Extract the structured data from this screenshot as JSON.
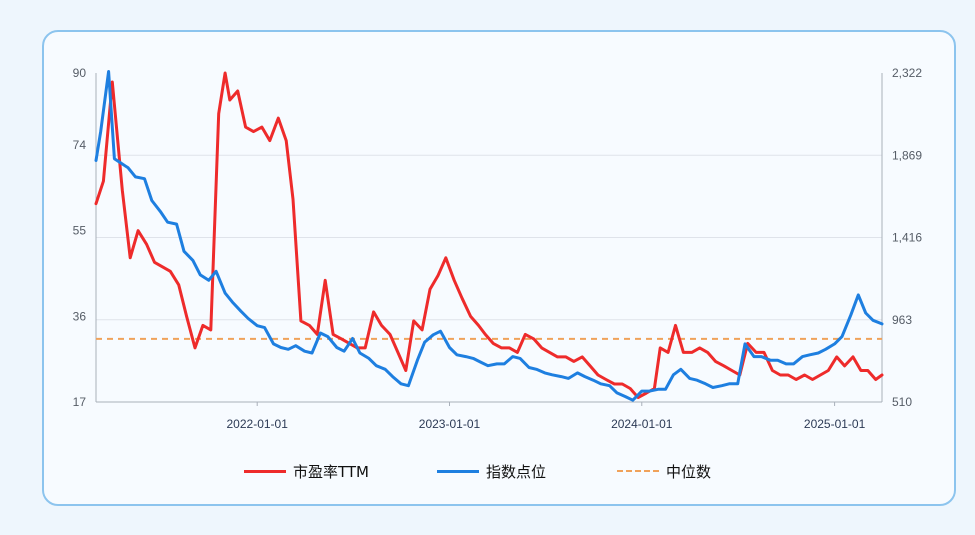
{
  "chart_data": {
    "type": "line",
    "x_ticks": [
      "2022-01-01",
      "2023-01-01",
      "2024-01-01",
      "2025-01-01"
    ],
    "y_left_ticks": [
      "17",
      "36",
      "55",
      "74",
      "90"
    ],
    "y_right_ticks": [
      "510",
      "963",
      "1,416",
      "1,869",
      "2,322"
    ],
    "y_left_range": [
      17,
      90
    ],
    "y_right_range": [
      510,
      2322
    ],
    "x_range": [
      "2021-03-01",
      "2025-04-01"
    ],
    "median_pe": 31,
    "grid": "horizontal",
    "legend_placement": "bottom",
    "series": [
      {
        "name": "市盈率TTM",
        "axis": "left",
        "color": "#ee2b2b",
        "x": [
          "2021-03-01",
          "2021-03-15",
          "2021-04-01",
          "2021-04-20",
          "2021-05-05",
          "2021-05-20",
          "2021-06-05",
          "2021-06-20",
          "2021-07-05",
          "2021-07-20",
          "2021-08-05",
          "2021-08-20",
          "2021-09-05",
          "2021-09-20",
          "2021-10-05",
          "2021-10-20",
          "2021-11-01",
          "2021-11-10",
          "2021-11-25",
          "2021-12-10",
          "2021-12-25",
          "2022-01-10",
          "2022-01-25",
          "2022-02-10",
          "2022-02-25",
          "2022-03-10",
          "2022-03-25",
          "2022-04-10",
          "2022-04-25",
          "2022-05-10",
          "2022-05-25",
          "2022-06-10",
          "2022-06-25",
          "2022-07-10",
          "2022-07-25",
          "2022-08-10",
          "2022-08-25",
          "2022-09-10",
          "2022-09-25",
          "2022-10-10",
          "2022-10-25",
          "2022-11-10",
          "2022-11-25",
          "2022-12-10",
          "2022-12-25",
          "2023-01-10",
          "2023-01-25",
          "2023-02-10",
          "2023-02-25",
          "2023-03-10",
          "2023-03-25",
          "2023-04-10",
          "2023-04-25",
          "2023-05-10",
          "2023-05-25",
          "2023-06-10",
          "2023-06-25",
          "2023-07-10",
          "2023-07-25",
          "2023-08-10",
          "2023-08-25",
          "2023-09-10",
          "2023-09-25",
          "2023-10-10",
          "2023-10-25",
          "2023-11-10",
          "2023-11-25",
          "2023-12-10",
          "2023-12-25",
          "2024-01-10",
          "2024-01-25",
          "2024-02-05",
          "2024-02-20",
          "2024-03-05",
          "2024-03-20",
          "2024-04-05",
          "2024-04-20",
          "2024-05-05",
          "2024-05-20",
          "2024-06-05",
          "2024-06-20",
          "2024-07-05",
          "2024-07-20",
          "2024-08-05",
          "2024-08-20",
          "2024-09-05",
          "2024-09-20",
          "2024-10-05",
          "2024-10-20",
          "2024-11-05",
          "2024-11-20",
          "2024-12-05",
          "2024-12-20",
          "2025-01-05",
          "2025-01-20",
          "2025-02-05",
          "2025-02-20",
          "2025-03-05",
          "2025-03-20",
          "2025-04-01"
        ],
        "values": [
          61,
          66,
          88,
          64,
          49,
          55,
          52,
          48,
          47,
          46,
          43,
          36,
          29,
          34,
          33,
          81,
          90,
          84,
          86,
          78,
          77,
          78,
          75,
          80,
          75,
          62,
          35,
          34,
          32,
          44,
          32,
          31,
          30,
          29,
          29,
          37,
          34,
          32,
          28,
          24,
          35,
          33,
          42,
          45,
          49,
          44,
          40,
          36,
          34,
          32,
          30,
          29,
          29,
          28,
          32,
          31,
          29,
          28,
          27,
          27,
          26,
          27,
          25,
          23,
          22,
          21,
          21,
          20,
          18,
          19,
          20,
          29,
          28,
          34,
          28,
          28,
          29,
          28,
          26,
          25,
          24,
          23,
          30,
          28,
          28,
          24,
          23,
          23,
          22,
          23,
          22,
          23,
          24,
          27,
          25,
          27,
          24,
          24,
          22,
          23
        ]
      },
      {
        "name": "指数点位",
        "axis": "right",
        "color": "#1e7fe0",
        "x": [
          "2021-03-01",
          "2021-03-10",
          "2021-03-25",
          "2021-04-05",
          "2021-04-15",
          "2021-05-01",
          "2021-05-15",
          "2021-06-01",
          "2021-06-15",
          "2021-07-01",
          "2021-07-15",
          "2021-08-01",
          "2021-08-15",
          "2021-09-01",
          "2021-09-15",
          "2021-10-01",
          "2021-10-15",
          "2021-11-01",
          "2021-11-15",
          "2021-12-01",
          "2021-12-15",
          "2022-01-01",
          "2022-01-15",
          "2022-02-01",
          "2022-02-15",
          "2022-03-01",
          "2022-03-15",
          "2022-04-01",
          "2022-04-15",
          "2022-05-01",
          "2022-05-15",
          "2022-06-01",
          "2022-06-15",
          "2022-07-01",
          "2022-07-15",
          "2022-08-01",
          "2022-08-15",
          "2022-09-01",
          "2022-09-15",
          "2022-10-01",
          "2022-10-15",
          "2022-11-01",
          "2022-11-15",
          "2022-12-01",
          "2022-12-15",
          "2023-01-01",
          "2023-01-15",
          "2023-02-01",
          "2023-02-15",
          "2023-03-01",
          "2023-03-15",
          "2023-04-01",
          "2023-04-15",
          "2023-05-01",
          "2023-05-15",
          "2023-06-01",
          "2023-06-15",
          "2023-07-01",
          "2023-07-15",
          "2023-08-01",
          "2023-08-15",
          "2023-09-01",
          "2023-09-15",
          "2023-10-01",
          "2023-10-15",
          "2023-11-01",
          "2023-11-15",
          "2023-12-01",
          "2023-12-15",
          "2024-01-01",
          "2024-01-15",
          "2024-02-01",
          "2024-02-15",
          "2024-03-01",
          "2024-03-15",
          "2024-04-01",
          "2024-04-15",
          "2024-05-01",
          "2024-05-15",
          "2024-06-01",
          "2024-06-15",
          "2024-07-01",
          "2024-07-15",
          "2024-08-01",
          "2024-08-15",
          "2024-09-01",
          "2024-09-15",
          "2024-10-01",
          "2024-10-15",
          "2024-11-01",
          "2024-11-15",
          "2024-12-01",
          "2024-12-15",
          "2025-01-01",
          "2025-01-15",
          "2025-02-01",
          "2025-02-15",
          "2025-03-01",
          "2025-03-15",
          "2025-04-01"
        ],
        "values": [
          1840,
          2000,
          2330,
          1850,
          1830,
          1800,
          1750,
          1740,
          1620,
          1560,
          1500,
          1490,
          1340,
          1290,
          1210,
          1180,
          1230,
          1110,
          1060,
          1010,
          970,
          930,
          920,
          830,
          810,
          800,
          820,
          790,
          780,
          890,
          870,
          810,
          790,
          860,
          780,
          750,
          710,
          690,
          650,
          610,
          600,
          740,
          840,
          880,
          900,
          810,
          770,
          760,
          750,
          730,
          710,
          720,
          720,
          760,
          750,
          700,
          690,
          670,
          660,
          650,
          640,
          670,
          650,
          630,
          610,
          600,
          560,
          540,
          520,
          570,
          570,
          580,
          580,
          660,
          690,
          640,
          630,
          610,
          590,
          600,
          610,
          610,
          830,
          760,
          760,
          740,
          740,
          720,
          720,
          760,
          770,
          780,
          800,
          830,
          870,
          990,
          1100,
          1000,
          960,
          940
        ]
      }
    ]
  },
  "legend": {
    "pe_label": "市盈率TTM",
    "index_label": "指数点位",
    "median_label": "中位数"
  },
  "colors": {
    "pe": "#ee2b2b",
    "index": "#1e7fe0",
    "median": "#f0a25a",
    "grid": "#dfe3ea",
    "axis": "#a9b0ba"
  }
}
